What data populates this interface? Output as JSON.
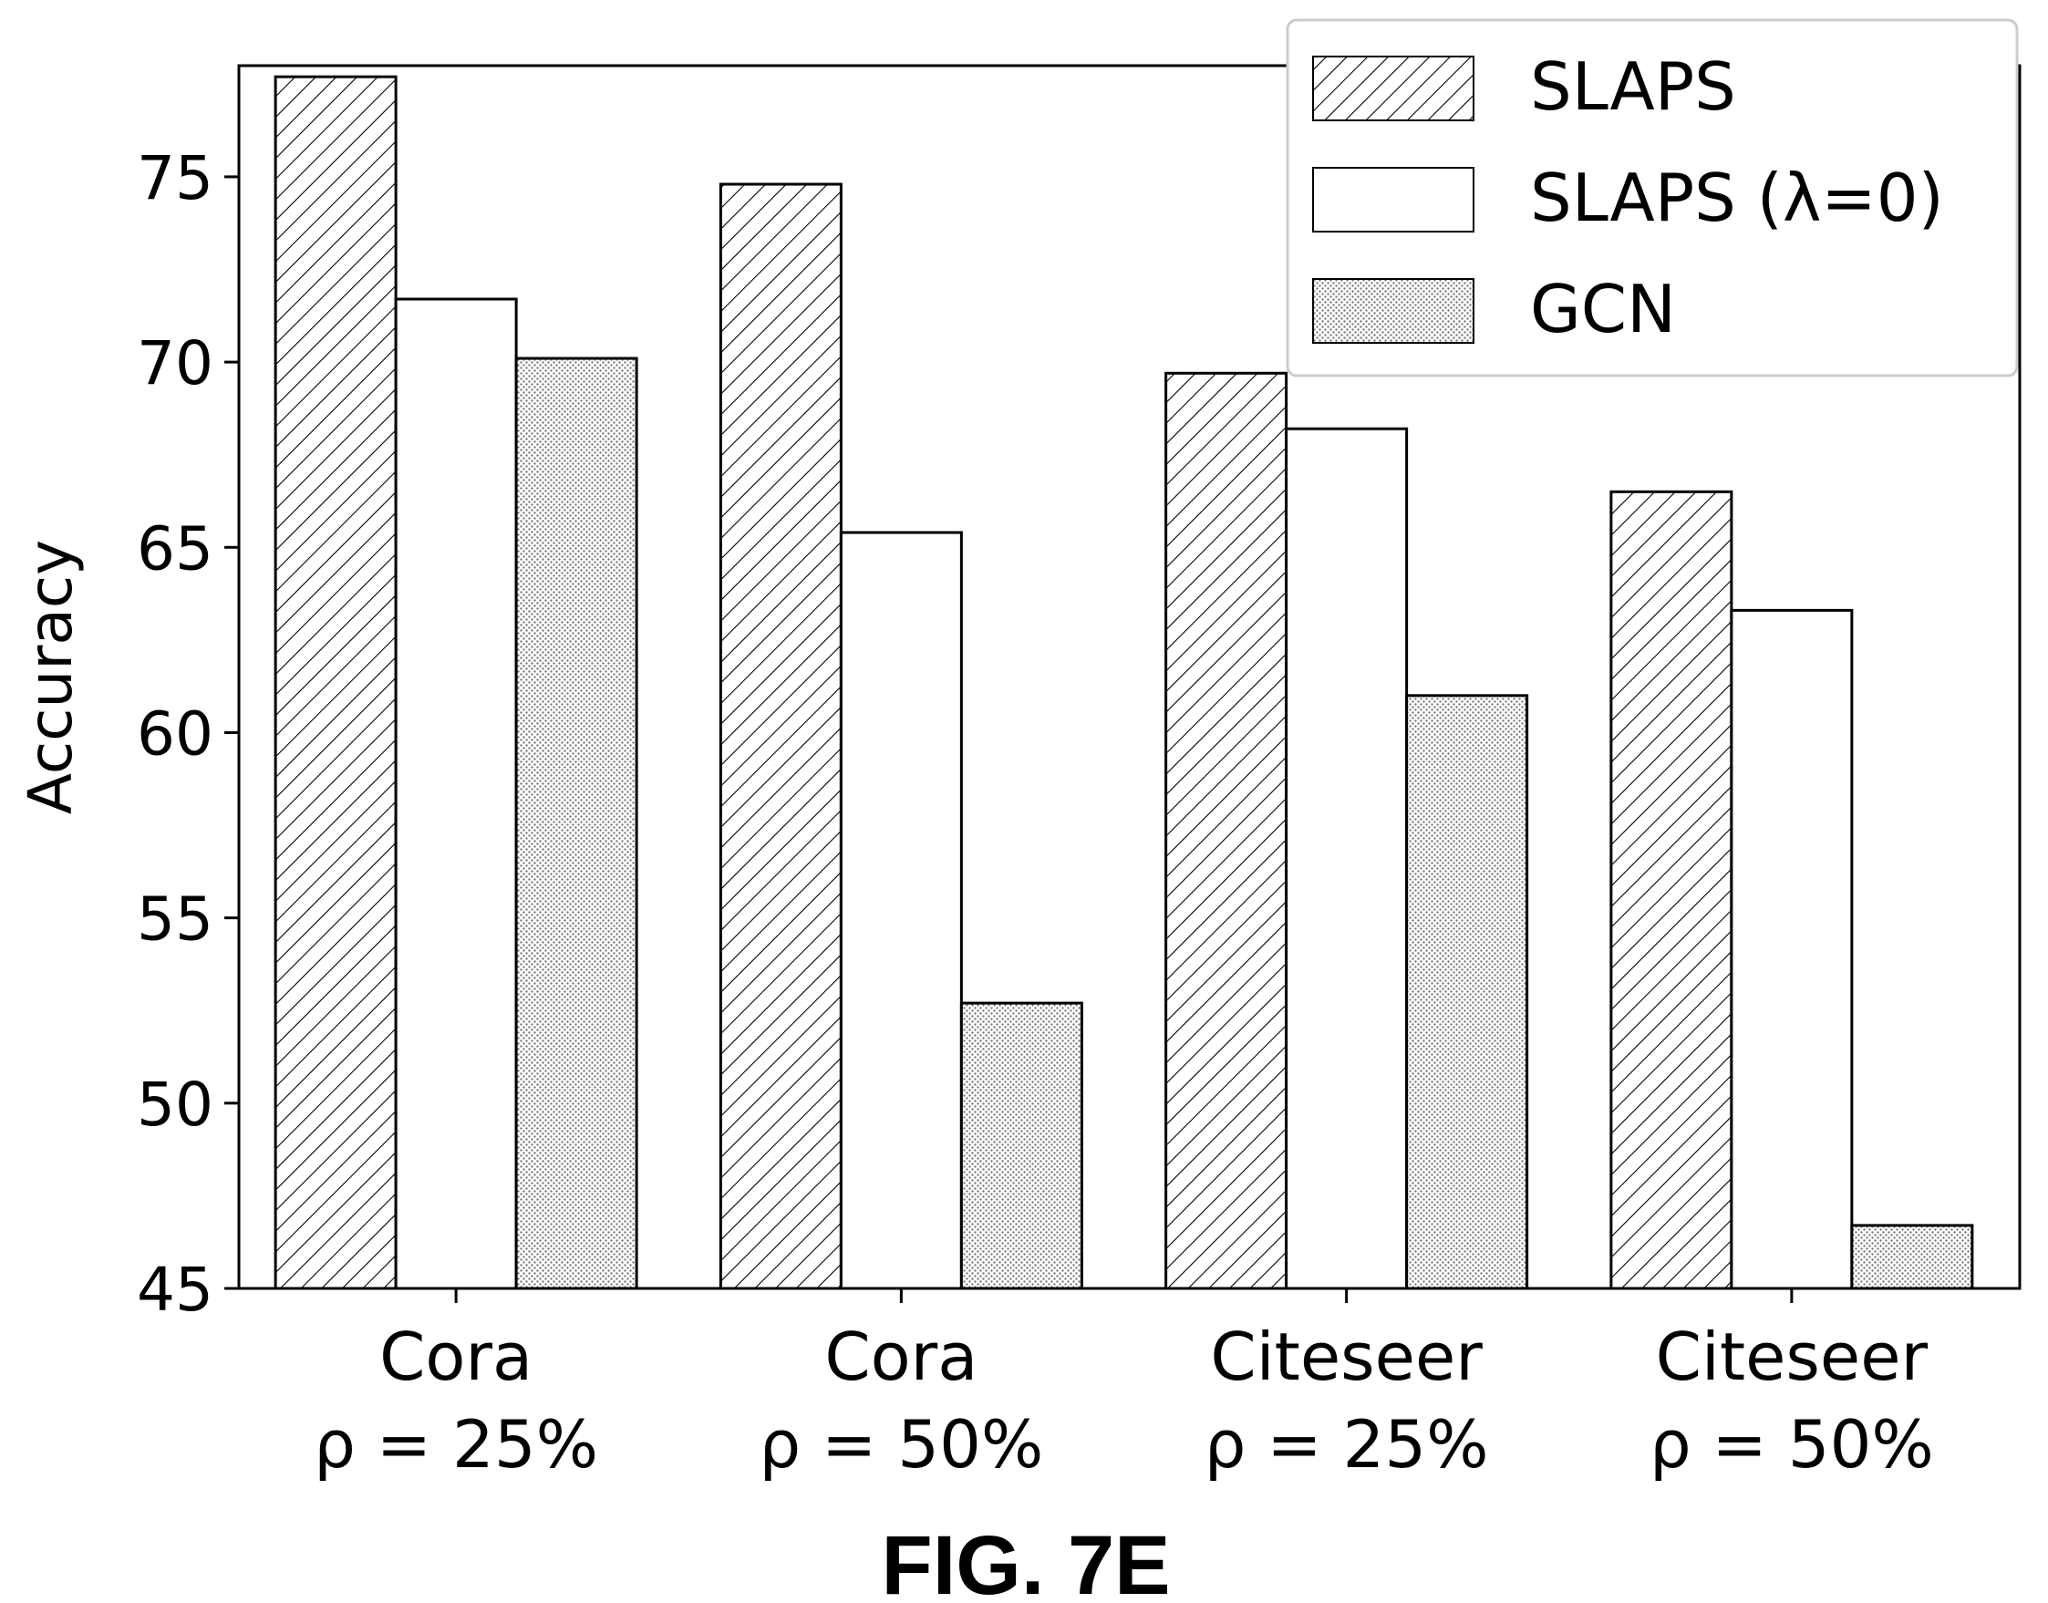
{
  "figure_caption": "FIG. 7E",
  "chart_data": {
    "type": "bar",
    "categories": [
      {
        "line1": "Cora",
        "line2": "ρ = 25%"
      },
      {
        "line1": "Cora",
        "line2": "ρ = 50%"
      },
      {
        "line1": "Citeseer",
        "line2": "ρ = 25%"
      },
      {
        "line1": "Citeseer",
        "line2": "ρ = 50%"
      }
    ],
    "series": [
      {
        "name": "SLAPS",
        "pattern": "diagonal-hatch",
        "values": [
          77.7,
          74.8,
          69.7,
          66.5
        ]
      },
      {
        "name": "SLAPS (λ=0)",
        "pattern": "none",
        "values": [
          71.7,
          65.4,
          68.2,
          63.3
        ]
      },
      {
        "name": "GCN",
        "pattern": "dotted",
        "values": [
          70.1,
          52.7,
          61.0,
          46.7
        ]
      }
    ],
    "ylabel": "Accuracy",
    "xlabel": "",
    "ylim": [
      45,
      78
    ],
    "yticks": [
      45,
      50,
      55,
      60,
      65,
      70,
      75
    ],
    "grid": false,
    "legend_placement": "top-right",
    "colors": {
      "bar_edge": "#000000",
      "bar_fill": "#ffffff",
      "dots": "#7a7a7a"
    }
  }
}
